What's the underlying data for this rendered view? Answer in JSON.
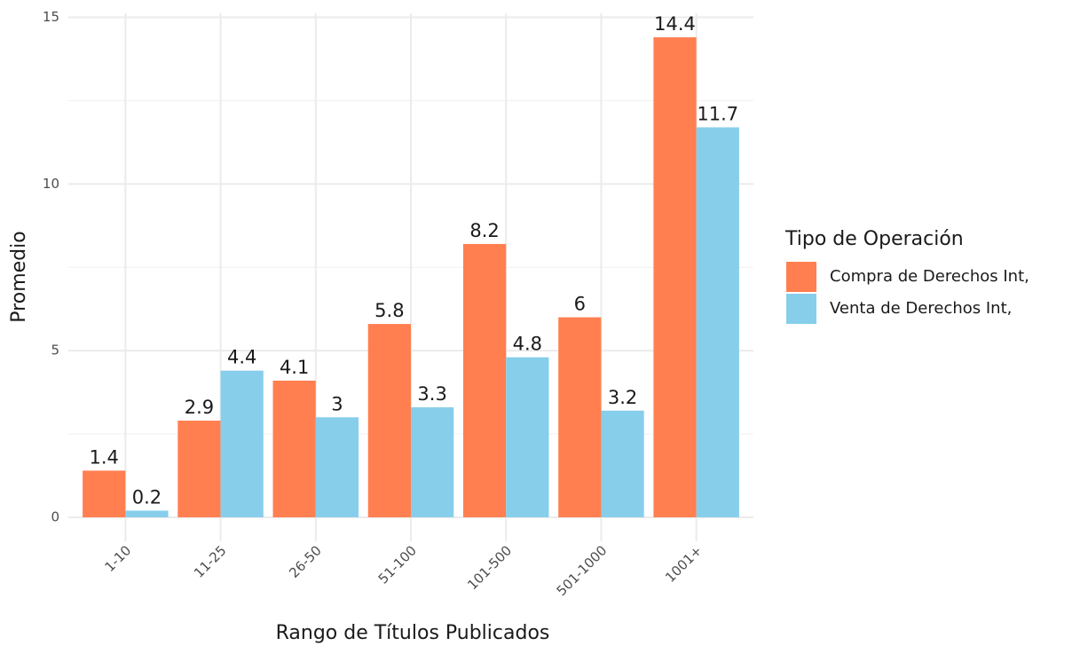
{
  "chart_data": {
    "type": "bar",
    "x_label": "Rango de Títulos Publicados",
    "y_label": "Promedio",
    "legend_title": "Tipo de Operación",
    "categories": [
      "1-10",
      "11-25",
      "26-50",
      "51-100",
      "101-500",
      "501-1000",
      "1001+"
    ],
    "series": [
      {
        "name": "Compra de Derechos Int,",
        "color": "#ff7f50",
        "values": [
          1.4,
          2.9,
          4.1,
          5.8,
          8.2,
          6,
          14.4
        ]
      },
      {
        "name": "Venta de Derechos Int,",
        "color": "#87ceeb",
        "values": [
          0.2,
          4.4,
          3,
          3.3,
          4.8,
          3.2,
          11.7
        ]
      }
    ],
    "ylim": [
      -0.72,
      15.12
    ],
    "yticks": [
      0,
      5,
      10,
      15
    ],
    "yminor": [
      2.5,
      7.5,
      12.5
    ],
    "grid": true,
    "legend": "right"
  }
}
